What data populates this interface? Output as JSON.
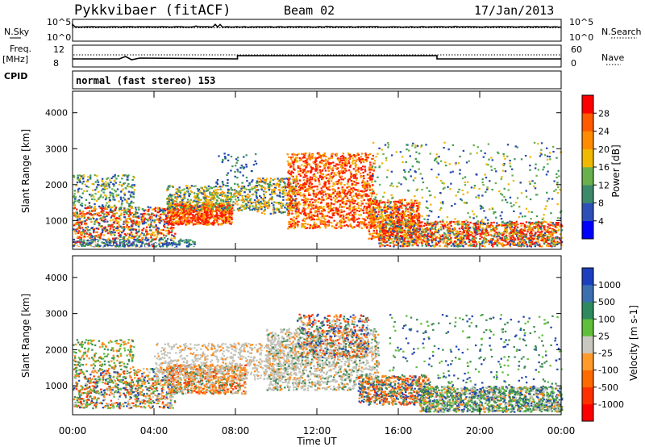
{
  "header": {
    "station": "Pykkvibaer (fitACF)",
    "beam": "Beam 02",
    "date": "17/Jan/2013"
  },
  "nsky_panel": {
    "left_label": "N.Sky",
    "right_label": "N.Search",
    "left_ticks": [
      "10^5",
      "10^0"
    ],
    "right_ticks": [
      "10^5",
      "10^0"
    ]
  },
  "freq_panel": {
    "left_label_1": "Freq.",
    "left_label_2": "[MHz]",
    "right_label": "Nave",
    "left_ticks": [
      "12",
      "8"
    ],
    "right_ticks": [
      "60",
      "0"
    ],
    "cpid_label": "CPID"
  },
  "cpid_panel": {
    "text": "normal (fast stereo) 153"
  },
  "chart_data": [
    {
      "type": "heatmap",
      "title": "Power",
      "ylabel": "Slant Range [km]",
      "xlabel": "",
      "yticks": [
        "1000",
        "2000",
        "3000",
        "4000"
      ],
      "ylim": [
        200,
        4600
      ],
      "xlim": [
        0,
        24
      ],
      "colorbar_label": "Power [dB]",
      "colorbar_ticks": [
        "4",
        "8",
        "12",
        "16",
        "20",
        "24",
        "28"
      ],
      "colorbar_colors": [
        "#0000ff",
        "#2e4fb8",
        "#3d8a6b",
        "#6ab04c",
        "#f0b800",
        "#ff8c00",
        "#ff5a00",
        "#ff0000"
      ]
    },
    {
      "type": "heatmap",
      "title": "Velocity",
      "ylabel": "Slant Range [km]",
      "xlabel": "Time UT",
      "yticks": [
        "1000",
        "2000",
        "3000",
        "4000"
      ],
      "ylim": [
        200,
        4600
      ],
      "xlim": [
        0,
        24
      ],
      "xticks": [
        "00:00",
        "04:00",
        "08:00",
        "12:00",
        "16:00",
        "20:00",
        "00:00"
      ],
      "colorbar_label": "Velocity [m s-1]",
      "colorbar_ticks": [
        "1000",
        "500",
        "100",
        "25",
        "-25",
        "-100",
        "-500",
        "-1000"
      ],
      "colorbar_colors": [
        "#1c3fbf",
        "#3b6fb0",
        "#2e8a5e",
        "#5fbf3a",
        "#c8c8c0",
        "#ff9a2a",
        "#ff6a00",
        "#ff3000",
        "#ff0000"
      ]
    }
  ],
  "colors": {
    "power_red": "#ff1a00",
    "power_orange": "#ff8c00",
    "power_green": "#3d9a5a",
    "power_blue": "#2448b0",
    "vel_grey": "#c3c3bb",
    "vel_orange": "#ff8a1a",
    "vel_green": "#3d8a55",
    "vel_blue": "#2448b0"
  }
}
